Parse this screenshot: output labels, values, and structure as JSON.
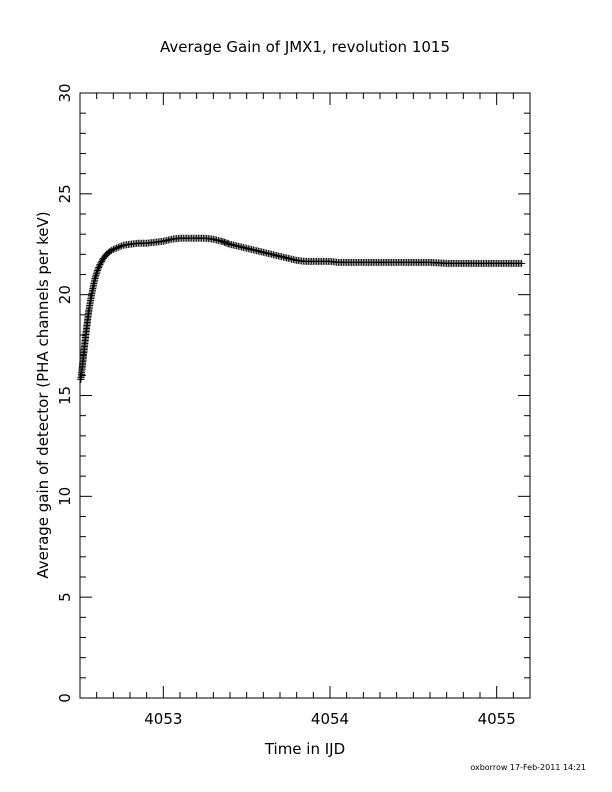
{
  "chart_data": {
    "type": "scatter",
    "title": "Average Gain of JMX1, revolution 1015",
    "xlabel": "Time in IJD",
    "ylabel": "Average gain of detector (PHA channels per keV)",
    "xlim": [
      4052.5,
      4055.2
    ],
    "ylim": [
      0,
      30
    ],
    "x_major_ticks": [
      4053,
      4054,
      4055
    ],
    "x_tick_labels": [
      "4053",
      "4054",
      "4055"
    ],
    "y_major_ticks": [
      0,
      5,
      10,
      15,
      20,
      25,
      30
    ],
    "y_tick_labels": [
      "0",
      "5",
      "10",
      "15",
      "20",
      "25",
      "30"
    ],
    "marker": "plus",
    "grid": false,
    "legend": "none",
    "points": [
      [
        4052.505,
        15.8
      ],
      [
        4052.512,
        16.3
      ],
      [
        4052.52,
        16.9
      ],
      [
        4052.528,
        17.5
      ],
      [
        4052.536,
        18.1
      ],
      [
        4052.545,
        18.7
      ],
      [
        4052.555,
        19.3
      ],
      [
        4052.565,
        19.8
      ],
      [
        4052.577,
        20.3
      ],
      [
        4052.59,
        20.8
      ],
      [
        4052.605,
        21.2
      ],
      [
        4052.62,
        21.5
      ],
      [
        4052.64,
        21.8
      ],
      [
        4052.66,
        22.0
      ],
      [
        4052.68,
        22.15
      ],
      [
        4052.7,
        22.25
      ],
      [
        4052.73,
        22.35
      ],
      [
        4052.76,
        22.45
      ],
      [
        4052.8,
        22.5
      ],
      [
        4052.85,
        22.55
      ],
      [
        4052.9,
        22.55
      ],
      [
        4052.95,
        22.6
      ],
      [
        4053.0,
        22.65
      ],
      [
        4053.05,
        22.75
      ],
      [
        4053.1,
        22.8
      ],
      [
        4053.15,
        22.8
      ],
      [
        4053.2,
        22.8
      ],
      [
        4053.25,
        22.8
      ],
      [
        4053.3,
        22.75
      ],
      [
        4053.35,
        22.65
      ],
      [
        4053.4,
        22.5
      ],
      [
        4053.45,
        22.4
      ],
      [
        4053.5,
        22.3
      ],
      [
        4053.55,
        22.2
      ],
      [
        4053.6,
        22.1
      ],
      [
        4053.65,
        22.0
      ],
      [
        4053.7,
        21.9
      ],
      [
        4053.75,
        21.8
      ],
      [
        4053.8,
        21.7
      ],
      [
        4053.85,
        21.65
      ],
      [
        4053.9,
        21.65
      ],
      [
        4053.95,
        21.65
      ],
      [
        4054.0,
        21.65
      ],
      [
        4054.05,
        21.6
      ],
      [
        4054.1,
        21.6
      ],
      [
        4054.15,
        21.6
      ],
      [
        4054.2,
        21.6
      ],
      [
        4054.3,
        21.6
      ],
      [
        4054.4,
        21.6
      ],
      [
        4054.5,
        21.6
      ],
      [
        4054.6,
        21.6
      ],
      [
        4054.7,
        21.55
      ],
      [
        4054.8,
        21.55
      ],
      [
        4054.9,
        21.55
      ],
      [
        4055.0,
        21.55
      ],
      [
        4055.1,
        21.55
      ],
      [
        4055.15,
        21.55
      ]
    ]
  },
  "footer": {
    "credit": "oxborrow 17-Feb-2011 14:21"
  }
}
